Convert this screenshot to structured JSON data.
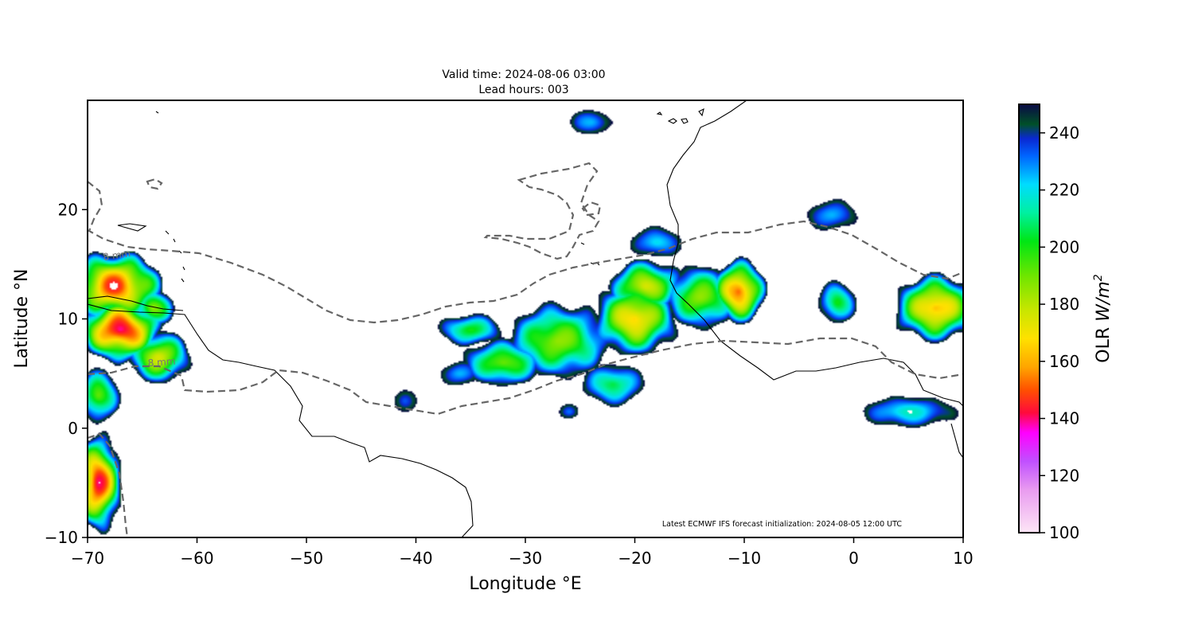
{
  "chart_data": {
    "type": "heatmap",
    "title_lines": [
      "Valid time: 2024-08-06 03:00",
      "Lead hours: 003"
    ],
    "xlabel": "Longitude °E",
    "ylabel": "Latitude °N",
    "xlim": [
      -70,
      10
    ],
    "ylim": [
      -10,
      30
    ],
    "xticks": [
      -70,
      -60,
      -50,
      -40,
      -30,
      -20,
      -10,
      0,
      10
    ],
    "xtick_labels": [
      "−70",
      "−60",
      "−50",
      "−40",
      "−30",
      "−20",
      "−10",
      "0",
      "10"
    ],
    "yticks": [
      -10,
      0,
      10,
      20
    ],
    "ytick_labels": [
      "−10",
      "0",
      "10",
      "20"
    ],
    "colorbar": {
      "label": "OLR W/m²",
      "label_prefix": "OLR ",
      "label_unit": "W/m",
      "label_sup": "2",
      "range": [
        100,
        250
      ],
      "ticks": [
        100,
        120,
        140,
        160,
        180,
        200,
        220,
        240
      ],
      "tick_labels": [
        "100",
        "120",
        "140",
        "160",
        "180",
        "200",
        "220",
        "240"
      ],
      "stops": [
        {
          "v": 100,
          "c": "#fde6f6"
        },
        {
          "v": 115,
          "c": "#e99bf0"
        },
        {
          "v": 125,
          "c": "#c050ff"
        },
        {
          "v": 135,
          "c": "#ff00ff"
        },
        {
          "v": 142,
          "c": "#ff0a3c"
        },
        {
          "v": 150,
          "c": "#ff5000"
        },
        {
          "v": 158,
          "c": "#ffa500"
        },
        {
          "v": 168,
          "c": "#ffe100"
        },
        {
          "v": 178,
          "c": "#c8e600"
        },
        {
          "v": 190,
          "c": "#6ee600"
        },
        {
          "v": 202,
          "c": "#00e614"
        },
        {
          "v": 212,
          "c": "#00f0a0"
        },
        {
          "v": 222,
          "c": "#00dcff"
        },
        {
          "v": 232,
          "c": "#0064ff"
        },
        {
          "v": 238,
          "c": "#0a28d2"
        },
        {
          "v": 243,
          "c": "#005028"
        },
        {
          "v": 250,
          "c": "#0a0a46"
        }
      ]
    },
    "contour_labels": [
      "8 mm",
      "8 mm"
    ],
    "note": "Latest ECMWF IFS forecast initialization: 2024-08-05 12:00 UTC",
    "olr_blobs": [
      {
        "lon": -67.5,
        "lat": 13.0,
        "rx": 4.5,
        "ry": 3.2,
        "min": 145
      },
      {
        "lon": -67.0,
        "lat": 9.0,
        "rx": 4.0,
        "ry": 3.0,
        "min": 138
      },
      {
        "lon": -63.5,
        "lat": 6.5,
        "rx": 3.0,
        "ry": 2.5,
        "min": 175
      },
      {
        "lon": -69.0,
        "lat": 3.0,
        "rx": 2.0,
        "ry": 2.5,
        "min": 190
      },
      {
        "lon": -69.0,
        "lat": -5.0,
        "rx": 2.2,
        "ry": 4.5,
        "min": 140
      },
      {
        "lon": -64.0,
        "lat": 11.0,
        "rx": 2.0,
        "ry": 1.8,
        "min": 185
      },
      {
        "lon": -24.0,
        "lat": 28.0,
        "rx": 2.2,
        "ry": 1.2,
        "min": 225
      },
      {
        "lon": -35.0,
        "lat": 9.0,
        "rx": 3.0,
        "ry": 1.5,
        "min": 200
      },
      {
        "lon": -32.0,
        "lat": 6.0,
        "rx": 4.0,
        "ry": 2.2,
        "min": 190
      },
      {
        "lon": -27.0,
        "lat": 8.0,
        "rx": 5.0,
        "ry": 3.5,
        "min": 185
      },
      {
        "lon": -20.0,
        "lat": 10.0,
        "rx": 4.0,
        "ry": 3.5,
        "min": 165
      },
      {
        "lon": -19.0,
        "lat": 13.0,
        "rx": 3.5,
        "ry": 2.5,
        "min": 175
      },
      {
        "lon": -18.0,
        "lat": 17.0,
        "rx": 2.5,
        "ry": 1.5,
        "min": 220
      },
      {
        "lon": -14.0,
        "lat": 12.0,
        "rx": 3.5,
        "ry": 3.0,
        "min": 185
      },
      {
        "lon": -10.5,
        "lat": 12.5,
        "rx": 2.5,
        "ry": 3.0,
        "min": 150
      },
      {
        "lon": -22.0,
        "lat": 4.0,
        "rx": 3.0,
        "ry": 2.0,
        "min": 205
      },
      {
        "lon": -36.0,
        "lat": 5.0,
        "rx": 2.0,
        "ry": 1.2,
        "min": 225
      },
      {
        "lon": -2.0,
        "lat": 19.5,
        "rx": 2.5,
        "ry": 1.5,
        "min": 225
      },
      {
        "lon": -1.5,
        "lat": 11.5,
        "rx": 1.8,
        "ry": 2.0,
        "min": 200
      },
      {
        "lon": 7.5,
        "lat": 11.0,
        "rx": 4.0,
        "ry": 3.2,
        "min": 160
      },
      {
        "lon": 5.0,
        "lat": 1.5,
        "rx": 4.5,
        "ry": 1.5,
        "min": 215
      },
      {
        "lon": -26.0,
        "lat": 1.5,
        "rx": 1.0,
        "ry": 0.8,
        "min": 230
      },
      {
        "lon": -41.0,
        "lat": 2.5,
        "rx": 1.2,
        "ry": 1.2,
        "min": 232
      }
    ]
  }
}
